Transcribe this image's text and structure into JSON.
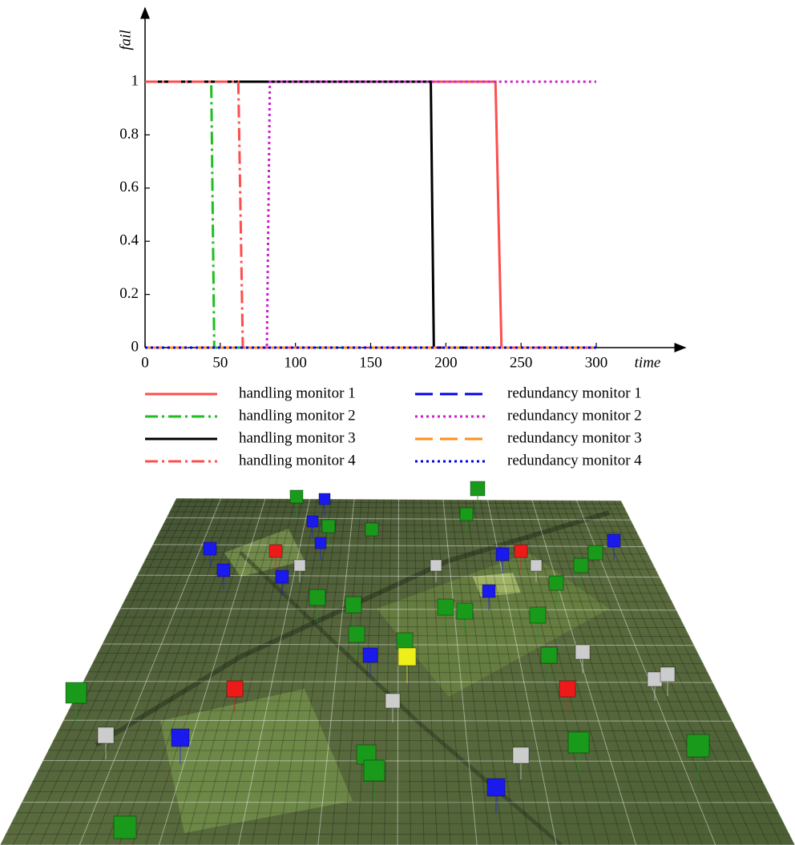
{
  "chart_data": {
    "type": "line",
    "xlabel": "time",
    "ylabel": "fail",
    "xlim": [
      0,
      360
    ],
    "ylim": [
      0,
      1.28
    ],
    "xticks": [
      0,
      50,
      100,
      150,
      200,
      250,
      300
    ],
    "yticks": [
      0,
      0.2,
      0.4,
      0.6,
      0.8,
      1
    ],
    "series": [
      {
        "name": "handling monitor 1",
        "color": "#ff4d4d",
        "linestyle": "solid",
        "x": [
          0,
          233,
          237,
          300
        ],
        "values": [
          1,
          1,
          0,
          0
        ]
      },
      {
        "name": "handling monitor 2",
        "color": "#1fbf1f",
        "linestyle": "dashdot",
        "x": [
          0,
          44,
          46,
          300
        ],
        "values": [
          1,
          1,
          0,
          0
        ]
      },
      {
        "name": "handling monitor 3",
        "color": "#000000",
        "linestyle": "solid",
        "x": [
          0,
          190,
          192,
          300
        ],
        "values": [
          1,
          1,
          0,
          0
        ]
      },
      {
        "name": "handling monitor 4",
        "color": "#ff4d4d",
        "linestyle": "dashdot",
        "x": [
          0,
          62,
          65,
          300
        ],
        "values": [
          1,
          1,
          0,
          0
        ]
      },
      {
        "name": "redundancy monitor 1",
        "color": "#0000ee",
        "linestyle": "dashed",
        "x": [
          0,
          300
        ],
        "values": [
          0,
          0
        ]
      },
      {
        "name": "redundancy monitor 2",
        "color": "#cc22cc",
        "linestyle": "dotted",
        "x": [
          0,
          81,
          83,
          300
        ],
        "values": [
          0,
          0,
          1,
          1
        ]
      },
      {
        "name": "redundancy monitor 3",
        "color": "#ff8c1a",
        "linestyle": "dashed",
        "x": [
          0,
          300
        ],
        "values": [
          0,
          0
        ]
      },
      {
        "name": "redundancy monitor 4",
        "color": "#0000ee",
        "linestyle": "dotted",
        "x": [
          0,
          300
        ],
        "values": [
          0,
          0
        ]
      }
    ]
  }
}
